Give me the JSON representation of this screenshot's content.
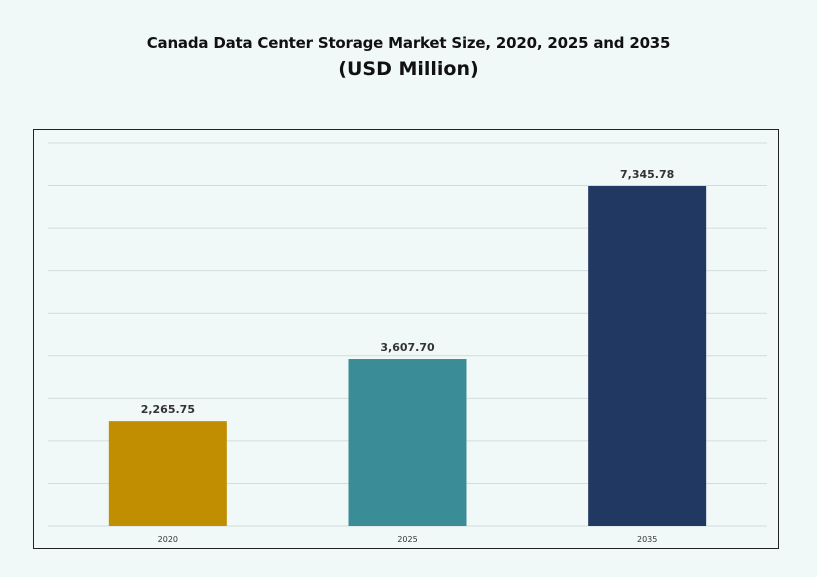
{
  "chart_data": {
    "type": "bar",
    "title": "Canada Data Center Storage Market Size, 2020, 2025 and 2035",
    "subtitle": "(USD Million)",
    "categories": [
      "2020",
      "2025",
      "2035"
    ],
    "values": [
      2265.75,
      3607.7,
      7345.78
    ],
    "data_labels": [
      "2,265.75",
      "3,607.70",
      "7,345.78"
    ],
    "colors": [
      "#c18e02",
      "#3a8d96",
      "#213863"
    ],
    "xlabel": "",
    "ylabel": "",
    "ylim": [
      0,
      8275
    ],
    "grid": true,
    "legend": "none"
  }
}
